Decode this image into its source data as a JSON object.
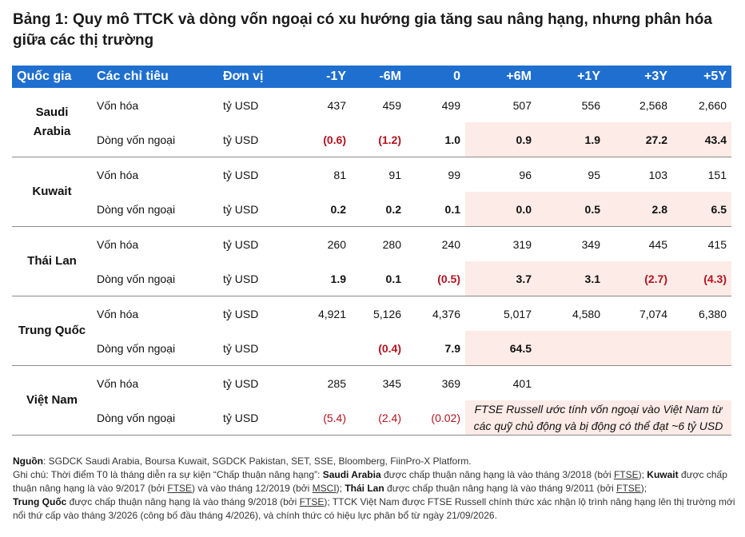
{
  "title": "Bảng 1: Quy mô TTCK và dòng vốn ngoại có xu hướng gia tăng sau nâng hạng, nhưng phân hóa giữa các thị trường",
  "header": [
    "Quốc gia",
    "Các chỉ tiêu",
    "Đơn vị",
    "-1Y",
    "-6M",
    "0",
    "+6M",
    "+1Y",
    "+3Y",
    "+5Y"
  ],
  "rows": {
    "sa": {
      "country": "Saudi Arabia",
      "cap": {
        "label": "Vốn hóa",
        "unit": "tỷ USD",
        "v": [
          "437",
          "459",
          "499",
          "507",
          "556",
          "2,568",
          "2,660"
        ]
      },
      "flow": {
        "label": "Dòng vốn ngoại",
        "unit": "tỷ USD",
        "v": [
          "(0.6)",
          "(1.2)",
          "1.0",
          "0.9",
          "1.9",
          "27.2",
          "43.4"
        ]
      }
    },
    "kw": {
      "country": "Kuwait",
      "cap": {
        "label": "Vốn hóa",
        "unit": "tỷ USD",
        "v": [
          "81",
          "91",
          "99",
          "96",
          "95",
          "103",
          "151"
        ]
      },
      "flow": {
        "label": "Dòng vốn ngoại",
        "unit": "tỷ USD",
        "v": [
          "0.2",
          "0.2",
          "0.1",
          "0.0",
          "0.5",
          "2.8",
          "6.5"
        ]
      }
    },
    "th": {
      "country": "Thái Lan",
      "cap": {
        "label": "Vốn hóa",
        "unit": "tỷ USD",
        "v": [
          "260",
          "280",
          "240",
          "319",
          "349",
          "445",
          "415"
        ]
      },
      "flow": {
        "label": "Dòng vốn ngoại",
        "unit": "tỷ USD",
        "v": [
          "1.9",
          "0.1",
          "(0.5)",
          "3.7",
          "3.1",
          "(2.7)",
          "(4.3)"
        ]
      }
    },
    "cn": {
      "country": "Trung Quốc",
      "cap": {
        "label": "Vốn hóa",
        "unit": "tỷ USD",
        "v": [
          "4,921",
          "5,126",
          "4,376",
          "5,017",
          "4,580",
          "7,074",
          "6,380"
        ]
      },
      "flow": {
        "label": "Dòng vốn ngoại",
        "unit": "tỷ USD",
        "v": [
          "",
          "(0.4)",
          "7.9",
          "64.5",
          "",
          "",
          ""
        ]
      }
    },
    "vn": {
      "country": "Việt Nam",
      "cap": {
        "label": "Vốn hóa",
        "unit": "tỷ USD",
        "v": [
          "285",
          "345",
          "369",
          "401",
          "",
          "",
          ""
        ]
      },
      "flow": {
        "label": "Dòng vốn ngoại",
        "unit": "tỷ USD",
        "v": [
          "(5.4)",
          "(2.4)",
          "(0.02)"
        ]
      },
      "note": "FTSE Russell ước tính vốn ngoại vào Việt Nam từ các quỹ chủ động và bị động có thể đạt ~6 tỷ USD"
    }
  },
  "notes": {
    "source_label": "Nguồn",
    "source_text": ": SGDCK Saudi Arabia, Boursa Kuwait, SGDCK Pakistan, SET, SSE, Bloomberg, FiinPro-X Platform.",
    "p1": "Ghi chú: Thời điểm T0 là tháng diễn ra sự kiện “Chấp thuận nâng hạng”: ",
    "k1": "Saudi Arabia",
    "p2": " được chấp thuận nâng hạng là vào tháng 3/2018 (bởi ",
    "ftse": "FTSE",
    "msci": "MSCI",
    "p3": "); ",
    "k2": "Kuwait",
    "p4": " được chấp thuận nâng hạng là vào 9/2017 (bởi ",
    "p5": ") và vào tháng 12/2019 (bởi ",
    "k3": "Thái Lan",
    "p6": " được chấp thuận nâng hạng là vào tháng 9/2011 (bởi ",
    "p7": ");",
    "k4": "Trung Quốc",
    "p8": " được chấp thuận nâng hạng là vào tháng 9/2018 (bởi ",
    "p9": "); TTCK Việt Nam được FTSE Russell chính thức xác nhận lộ trình nâng hạng lên thị trường mới nổi thứ cấp vào tháng 3/2026 (công bố đầu tháng 4/2026), và chính thức có hiệu lực phân bổ từ ngày 21/09/2026."
  },
  "colors": {
    "header_bg": "#1F6FD0",
    "highlight_bg": "#FCEBE6",
    "negative": "#B4121F"
  }
}
